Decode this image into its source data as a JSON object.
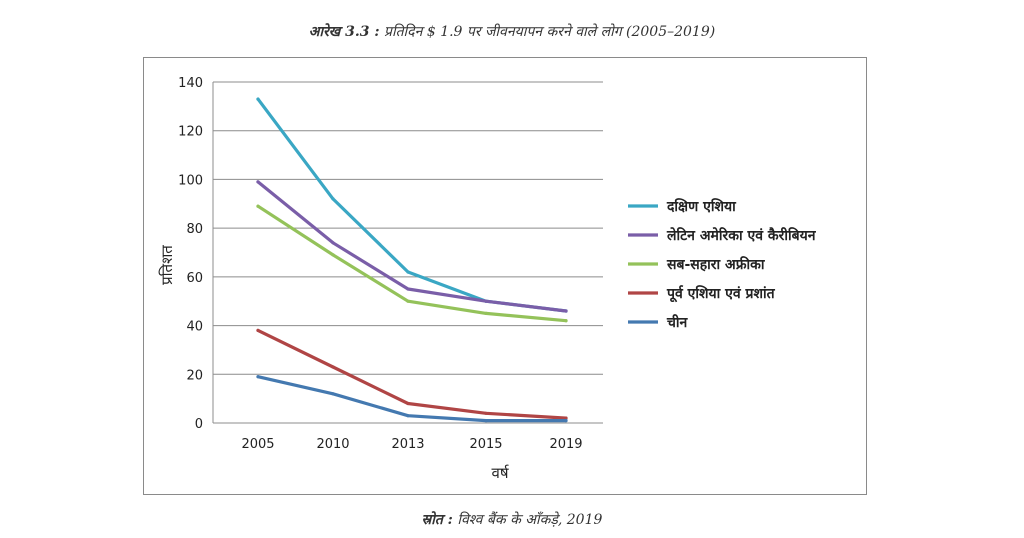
{
  "caption": {
    "lead": "आरेख 3.3 :",
    "text": "प्रतिदिन $ 1.9 पर जीवनयापन करने वाले लोग (2005–2019)"
  },
  "source": {
    "lead": "स्रोत :",
    "text": "विश्व बैंक के आँकड़े, 2019"
  },
  "chart_data": {
    "type": "line",
    "x": [
      "2005",
      "2010",
      "2013",
      "2015",
      "2019"
    ],
    "ylim": [
      0,
      140
    ],
    "yticks": [
      0,
      20,
      40,
      60,
      80,
      100,
      120,
      140
    ],
    "xlabel": "वर्ष",
    "ylabel": "प्रतिशत",
    "grid": "horizontal",
    "legend_position": "right",
    "series": [
      {
        "name": "दक्षिण एशिया",
        "color": "#3aa7c4",
        "values": [
          133,
          92,
          62,
          50,
          46
        ]
      },
      {
        "name": "लेटिन अमेरिका एवं कैरीबियन",
        "color": "#7a5ea8",
        "values": [
          99,
          74,
          55,
          50,
          46
        ]
      },
      {
        "name": "सब-सहारा अफ्रीका",
        "color": "#94c25a",
        "values": [
          89,
          69,
          50,
          45,
          42
        ]
      },
      {
        "name": "पूर्व एशिया एवं प्रशांत",
        "color": "#b04545",
        "values": [
          38,
          23,
          8,
          4,
          2
        ]
      },
      {
        "name": "चीन",
        "color": "#4479b0",
        "values": [
          19,
          12,
          3,
          1,
          1
        ]
      }
    ]
  }
}
